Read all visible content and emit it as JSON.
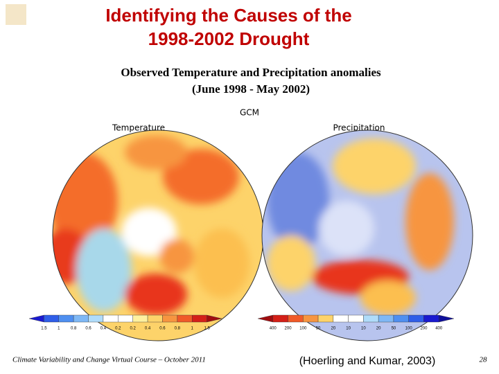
{
  "title": [
    "Identifying the Causes of the",
    "1998-2002 Drought"
  ],
  "subtitle": [
    "Observed Temperature and Precipitation anomalies",
    "(June 1998 - May 2002)"
  ],
  "model_label": "GCM",
  "maps": [
    {
      "label": "Temperature",
      "scale": [
        "1.5",
        "1",
        "0.8",
        "0.6",
        "0.4",
        "0.2",
        "0.2",
        "0.4",
        "0.6",
        "0.8",
        "1",
        "1.5"
      ]
    },
    {
      "label": "Precipitation",
      "scale": [
        "400",
        "200",
        "100",
        "50",
        "20",
        "10",
        "10",
        "20",
        "50",
        "100",
        "200",
        "400"
      ]
    }
  ],
  "footer": "Climate Variability and Change Virtual Course – October 2011",
  "citation": "(Hoerling and Kumar, 2003)",
  "page_number": "28"
}
